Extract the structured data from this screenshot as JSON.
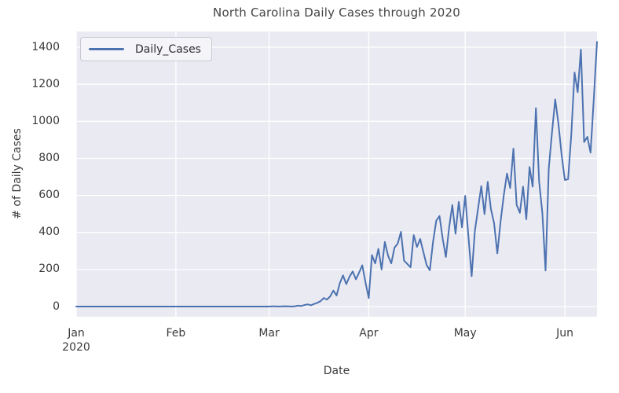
{
  "chart_data": {
    "type": "line",
    "title": "North Carolina Daily Cases through 2020",
    "xlabel": "Date",
    "ylabel": "# of Daily Cases",
    "grid": true,
    "legend": {
      "position": "upper left",
      "entries": [
        "Daily_Cases"
      ]
    },
    "colors": {
      "line": "#4c72b0",
      "plot_background": "#eaeaf2",
      "grid": "#ffffff",
      "text": "#3b3b3b"
    },
    "ylim": [
      -55,
      1485
    ],
    "y_ticks": [
      0,
      200,
      400,
      600,
      800,
      1000,
      1200,
      1400
    ],
    "x_ticks": [
      {
        "label": "Jan",
        "sublabel": "2020",
        "day": 0
      },
      {
        "label": "Feb",
        "sublabel": "",
        "day": 31
      },
      {
        "label": "Mar",
        "sublabel": "",
        "day": 60
      },
      {
        "label": "Apr",
        "sublabel": "",
        "day": 91
      },
      {
        "label": "May",
        "sublabel": "",
        "day": 121
      },
      {
        "label": "Jun",
        "sublabel": "",
        "day": 152
      }
    ],
    "x_start_date": "2020-01-01",
    "x_end_date": "2020-06-11",
    "series": [
      {
        "name": "Daily_Cases",
        "color": "#4c72b0",
        "values": [
          0,
          0,
          0,
          0,
          0,
          0,
          0,
          0,
          0,
          0,
          0,
          0,
          0,
          0,
          0,
          0,
          0,
          0,
          0,
          0,
          0,
          0,
          0,
          0,
          0,
          0,
          0,
          0,
          0,
          0,
          0,
          0,
          0,
          0,
          0,
          0,
          0,
          0,
          0,
          0,
          0,
          0,
          0,
          0,
          0,
          0,
          0,
          0,
          0,
          0,
          0,
          0,
          0,
          0,
          0,
          0,
          0,
          0,
          0,
          0,
          0,
          1,
          1,
          0,
          1,
          2,
          1,
          0,
          2,
          5,
          3,
          8,
          12,
          7,
          14,
          20,
          29,
          46,
          38,
          55,
          86,
          60,
          126,
          168,
          121,
          161,
          190,
          147,
          183,
          223,
          130,
          46,
          278,
          233,
          311,
          200,
          349,
          275,
          233,
          318,
          340,
          403,
          248,
          230,
          212,
          386,
          322,
          365,
          294,
          224,
          196,
          350,
          464,
          489,
          365,
          268,
          425,
          548,
          393,
          565,
          428,
          598,
          380,
          164,
          407,
          530,
          650,
          499,
          673,
          527,
          450,
          287,
          457,
          600,
          718,
          640,
          853,
          549,
          506,
          647,
          471,
          753,
          647,
          1071,
          676,
          506,
          195,
          745,
          940,
          1118,
          987,
          817,
          683,
          688,
          930,
          1263,
          1157,
          1387,
          888,
          916,
          831,
          1120,
          1429
        ]
      }
    ]
  }
}
